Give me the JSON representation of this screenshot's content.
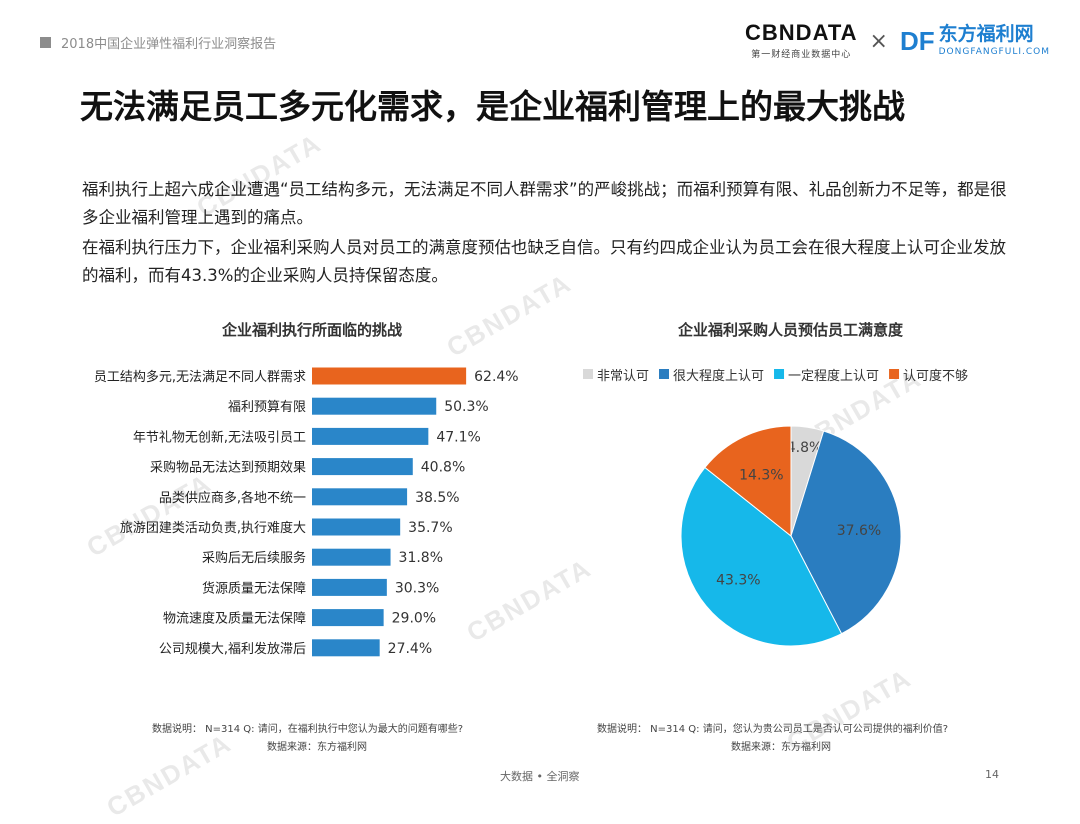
{
  "header": {
    "report_title": "2018中国企业弹性福利行业洞察报告",
    "logo_cbn": "CBNDATA",
    "logo_cbn_sub": "第一财经商业数据中心",
    "logo_separator": "×",
    "logo_dfl_mark": "DF",
    "logo_dfl_cn": "东方福利网",
    "logo_dfl_en": "DONGFANGFULI.COM"
  },
  "page": {
    "title": "无法满足员工多元化需求，是企业福利管理上的最大挑战",
    "paragraph_1": "福利执行上超六成企业遭遇“员工结构多元，无法满足不同人群需求”的严峻挑战；而福利预算有限、礼品创新力不足等，都是很多企业福利管理上遇到的痛点。",
    "paragraph_2": "在福利执行压力下，企业福利采购人员对员工的满意度预估也缺乏自信。只有约四成企业认为员工会在很大程度上认可企业发放的福利，而有43.3%的企业采购人员持保留态度。"
  },
  "watermark_text": "CBNDATA",
  "chart_data": [
    {
      "type": "bar",
      "orientation": "horizontal",
      "title": "企业福利执行所面临的挑战",
      "categories": [
        "员工结构多元,无法满足不同人群需求",
        "福利预算有限",
        "年节礼物无创新,无法吸引员工",
        "采购物品无法达到预期效果",
        "品类供应商多,各地不统一",
        "旅游团建类活动负责,执行难度大",
        "采购后无后续服务",
        "货源质量无法保障",
        "物流速度及质量无法保障",
        "公司规模大,福利发放滞后"
      ],
      "values": [
        62.4,
        50.3,
        47.1,
        40.8,
        38.5,
        35.7,
        31.8,
        30.3,
        29.0,
        27.4
      ],
      "value_labels": [
        "62.4%",
        "50.3%",
        "47.1%",
        "40.8%",
        "38.5%",
        "35.7%",
        "31.8%",
        "30.3%",
        "29.0%",
        "27.4%"
      ],
      "unit": "%",
      "xlim": [
        0,
        100
      ],
      "colors": {
        "highlight": "#e8641e",
        "default": "#2a86c9"
      },
      "highlight_index": 0,
      "grid": false
    },
    {
      "type": "pie",
      "title": "企业福利采购人员预估员工满意度",
      "categories": [
        "非常认可",
        "很大程度上认可",
        "一定程度上认可",
        "认可度不够"
      ],
      "values": [
        4.8,
        37.6,
        43.3,
        14.3
      ],
      "value_labels": [
        "4.8%",
        "37.6%",
        "43.3%",
        "14.3%"
      ],
      "colors": [
        "#d9d9d9",
        "#2a7dc0",
        "#16b8ea",
        "#e8641e"
      ],
      "legend_position": "top"
    }
  ],
  "notes": {
    "bar_note": "数据说明：  N=314  Q: 请问，在福利执行中您认为最大的问题有哪些?",
    "bar_source": "数据来源：东方福利网",
    "pie_note": "数据说明：  N=314  Q: 请问，您认为贵公司员工是否认可公司提供的福利价值?",
    "pie_source": "数据来源：东方福利网"
  },
  "footer": {
    "center": "大数据 • 全洞察",
    "page_number": "14"
  }
}
